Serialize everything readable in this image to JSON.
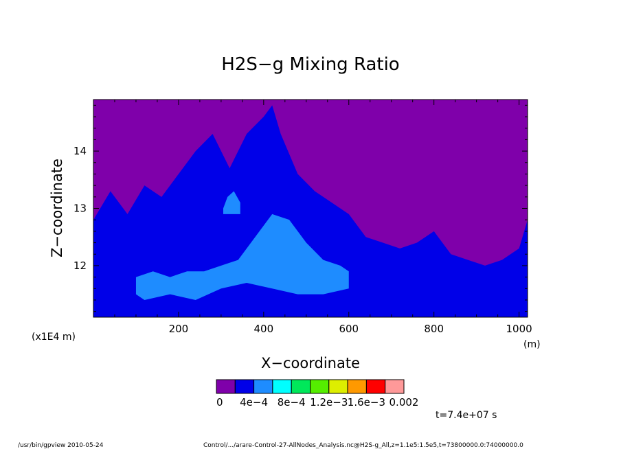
{
  "chart_data": {
    "type": "heatmap",
    "title": "H2S−g Mixing Ratio",
    "xlabel": "X−coordinate",
    "ylabel": "Z−coordinate",
    "x_unit": "(m)",
    "y_unit": "(x1E4 m)",
    "xlim": [
      0,
      1020
    ],
    "ylim": [
      11.1,
      14.9
    ],
    "x_ticks": [
      "200",
      "400",
      "600",
      "800",
      "1000"
    ],
    "y_ticks": [
      "12",
      "13",
      "14"
    ],
    "colorbar": {
      "labels": [
        "0",
        "4e−4",
        "8e−4",
        "1.2e−3",
        "1.6e−3",
        "0.002"
      ],
      "colors": [
        "#7f00aa",
        "#0000e8",
        "#1e8cff",
        "#00ffff",
        "#00e85a",
        "#55ee00",
        "#ddee00",
        "#ff9900",
        "#ff0000",
        "#ff9999"
      ]
    },
    "regions": [
      {
        "color": "#7f00aa",
        "x": [
          0,
          1020
        ],
        "y": [
          11.1,
          14.9
        ]
      },
      {
        "color": "#0000e8",
        "x_profile": [
          0,
          40,
          80,
          120,
          160,
          200,
          240,
          280,
          320,
          360,
          400,
          420,
          440,
          480,
          520,
          560,
          600,
          640,
          680,
          720,
          760,
          800,
          840,
          880,
          920,
          960,
          1000,
          1020
        ],
        "y_top": [
          12.8,
          13.3,
          12.9,
          13.4,
          13.2,
          13.6,
          14.0,
          14.3,
          13.7,
          14.3,
          14.6,
          14.8,
          14.3,
          13.6,
          13.3,
          13.1,
          12.9,
          12.5,
          12.4,
          12.3,
          12.4,
          12.6,
          12.2,
          12.1,
          12.0,
          12.1,
          12.3,
          12.8
        ]
      },
      {
        "color": "#1e8cff",
        "x_profile": [
          100,
          140,
          180,
          220,
          260,
          300,
          340,
          380,
          420,
          460,
          500,
          540,
          580,
          600
        ],
        "y_top": [
          11.8,
          11.9,
          11.8,
          11.9,
          11.9,
          12.0,
          12.1,
          12.5,
          12.9,
          12.8,
          12.4,
          12.1,
          12.0,
          11.9
        ]
      },
      {
        "color": "#1e8cff",
        "x_profile": [
          305,
          315,
          330,
          345
        ],
        "y_top": [
          13.0,
          13.2,
          13.3,
          13.1
        ]
      }
    ],
    "annotation": "t=7.4e+07 s"
  },
  "footer": {
    "left": "/usr/bin/gpview   2010-05-24",
    "right": "Control/.../arare-Control-27-AllNodes_Analysis.nc@H2S-g_All,z=1.1e5:1.5e5,t=73800000.0:74000000.0"
  }
}
